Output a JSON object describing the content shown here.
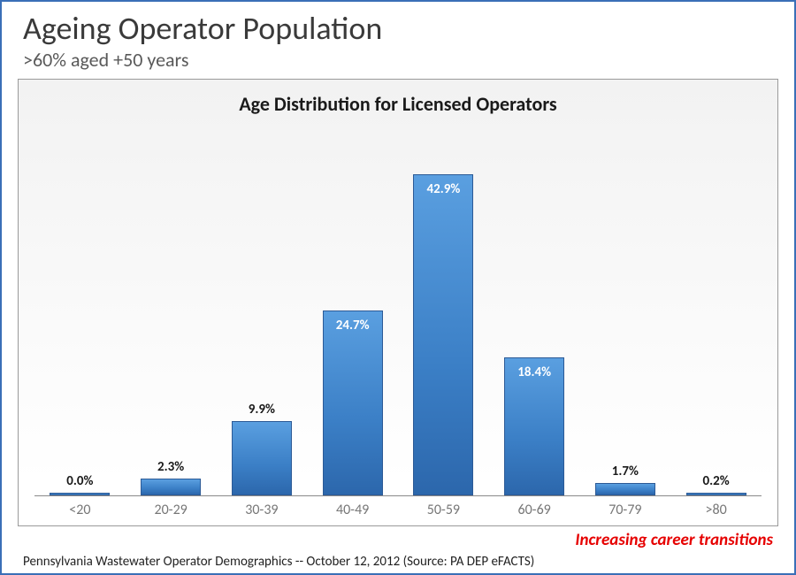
{
  "page": {
    "title": "Ageing Operator Population",
    "subtitle": ">60% aged +50 years"
  },
  "chart": {
    "type": "bar",
    "title": "Age Distribution for Licensed Operators",
    "categories": [
      "<20",
      "20-29",
      "30-39",
      "40-49",
      "50-59",
      "60-69",
      "70-79",
      ">80"
    ],
    "values": [
      0.0,
      2.3,
      9.9,
      24.7,
      42.9,
      18.4,
      1.7,
      0.2
    ],
    "value_labels": [
      "0.0%",
      "2.3%",
      "9.9%",
      "24.7%",
      "42.9%",
      "18.4%",
      "1.7%",
      "0.2%"
    ],
    "label_inside": [
      false,
      false,
      false,
      true,
      true,
      true,
      false,
      false
    ],
    "bar_color_top": "#5a9fe0",
    "bar_color_bottom": "#2c67ac",
    "bar_border": "#2c5a96",
    "panel_bg_top": "#f2f2f2",
    "panel_bg_bottom": "#ffffff",
    "panel_border": "#9a9a9a",
    "axis_color": "#8a8a8a",
    "category_color": "#777777",
    "category_fontsize": 16,
    "title_fontsize": 22,
    "value_fontsize": 15,
    "ymax": 50,
    "bar_width_pct": 66
  },
  "callout": {
    "text": "Increasing career transitions",
    "color": "#e60000"
  },
  "footer": {
    "text": "Pennsylvania Wastewater Operator Demographics -- October 12, 2012  (Source: PA DEP eFACTS)"
  },
  "frame_border_color": "#3a6fb7"
}
